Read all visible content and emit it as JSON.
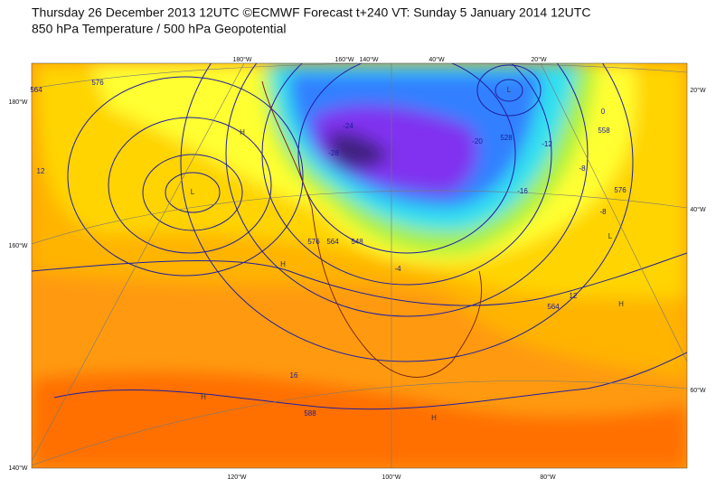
{
  "header": {
    "title": "Thursday 26 December 2013 12UTC ©ECMWF Forecast t+240 VT: Sunday 5 January 2014 12UTC",
    "subtitle": "850 hPa Temperature / 500 hPa Geopotential"
  },
  "map": {
    "top_labels": [
      "180°W",
      "160°W",
      "140°W",
      "40°W",
      "20°W"
    ],
    "right_labels": [
      "20°W",
      "40°W",
      "60°W"
    ],
    "left_labels": [
      "180°W",
      "160°W",
      "140°W"
    ],
    "bottom_labels": [
      "120°W",
      "100°W",
      "80°W"
    ],
    "contour_labels": [
      "564",
      "576",
      "12",
      "576",
      "564",
      "548",
      "-4",
      "528",
      "-12",
      "-8",
      "558",
      "576",
      "0",
      "-8",
      "-20",
      "-24",
      "-28",
      "16",
      "588",
      "12",
      "564",
      "-16"
    ],
    "pressure_markers": [
      "L",
      "H",
      "L",
      "H",
      "H",
      "H",
      "L",
      "H"
    ]
  }
}
